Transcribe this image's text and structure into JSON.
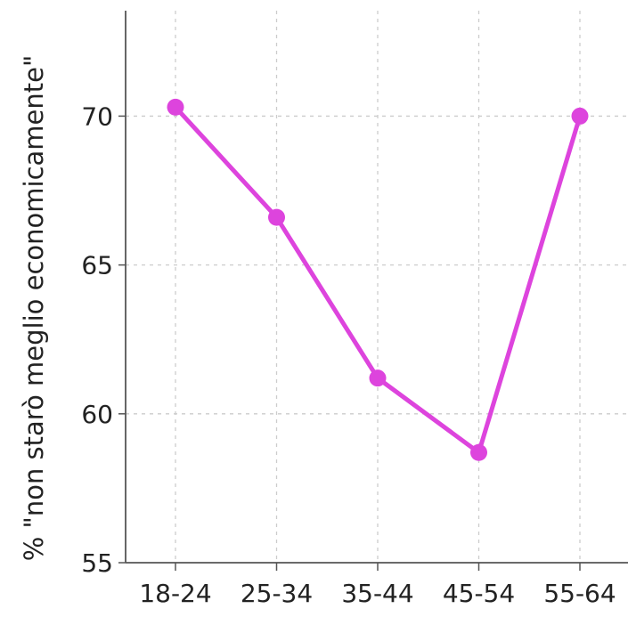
{
  "chart_data": {
    "type": "line",
    "title": "",
    "xlabel": "",
    "ylabel": "% \"non starò meglio economicamente\"",
    "categories": [
      "18-24",
      "25-34",
      "35-44",
      "45-54",
      "55-64"
    ],
    "series": [
      {
        "values": [
          70.3,
          66.6,
          61.2,
          58.7,
          70.0
        ]
      }
    ],
    "ylim": [
      55,
      73.9
    ],
    "yticks": [
      55,
      60,
      65,
      70
    ],
    "grid": true,
    "colors": {
      "line": "#dd44dd",
      "axis": "#555555",
      "grid": "#cccccc",
      "text": "#222222"
    }
  }
}
